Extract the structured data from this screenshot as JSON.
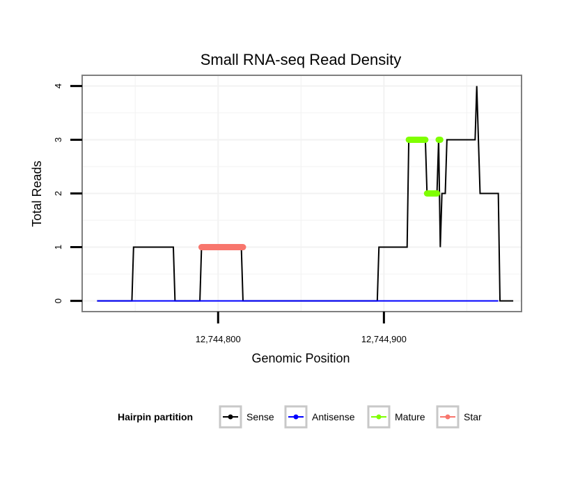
{
  "chart_data": {
    "type": "line",
    "title": "Small RNA-seq Read Density",
    "xlabel": "Genomic Position",
    "ylabel": "Total Reads",
    "xlim": [
      12744718,
      12744983
    ],
    "ylim": [
      -0.2,
      4.2
    ],
    "x_ticks": [
      12744800,
      12744900
    ],
    "x_tick_labels": [
      "12,744,800",
      "12,744,900"
    ],
    "y_ticks": [
      0,
      1,
      2,
      3,
      4
    ],
    "y_tick_labels": [
      "0",
      "1",
      "2",
      "3",
      "4"
    ],
    "grid": true,
    "series": [
      {
        "name": "Sense",
        "color": "#000000",
        "kind": "line",
        "x": [
          12744727,
          12744748,
          12744749,
          12744773,
          12744774,
          12744789,
          12744790,
          12744814,
          12744815,
          12744896,
          12744897,
          12744914,
          12744915,
          12744925,
          12744926,
          12744932,
          12744933,
          12744934,
          12744935,
          12744937,
          12744938,
          12744955,
          12744956,
          12744957,
          12744958,
          12744969,
          12744970,
          12744978
        ],
        "y": [
          0,
          0,
          1,
          1,
          0,
          0,
          1,
          1,
          0,
          0,
          1,
          1,
          3,
          3,
          2,
          2,
          3,
          1,
          2,
          2,
          3,
          3,
          4,
          3,
          2,
          2,
          0,
          0
        ]
      },
      {
        "name": "Antisense",
        "color": "#0000ff",
        "kind": "line",
        "x": [
          12744727,
          12744969
        ],
        "y": [
          0,
          0
        ]
      },
      {
        "name": "Mature",
        "color": "#7fff00",
        "kind": "points",
        "segments": [
          {
            "x": [
              12744915,
              12744925
            ],
            "y": 3
          },
          {
            "x": [
              12744926,
              12744932
            ],
            "y": 2
          },
          {
            "x": [
              12744933,
              12744934
            ],
            "y": 3
          }
        ]
      },
      {
        "name": "Star",
        "color": "#f8766d",
        "kind": "points",
        "segments": [
          {
            "x": [
              12744790,
              12744815
            ],
            "y": 1
          }
        ]
      }
    ],
    "legend": {
      "title": "Hairpin partition",
      "position": "bottom",
      "entries": [
        "Sense",
        "Antisense",
        "Mature",
        "Star"
      ]
    }
  }
}
